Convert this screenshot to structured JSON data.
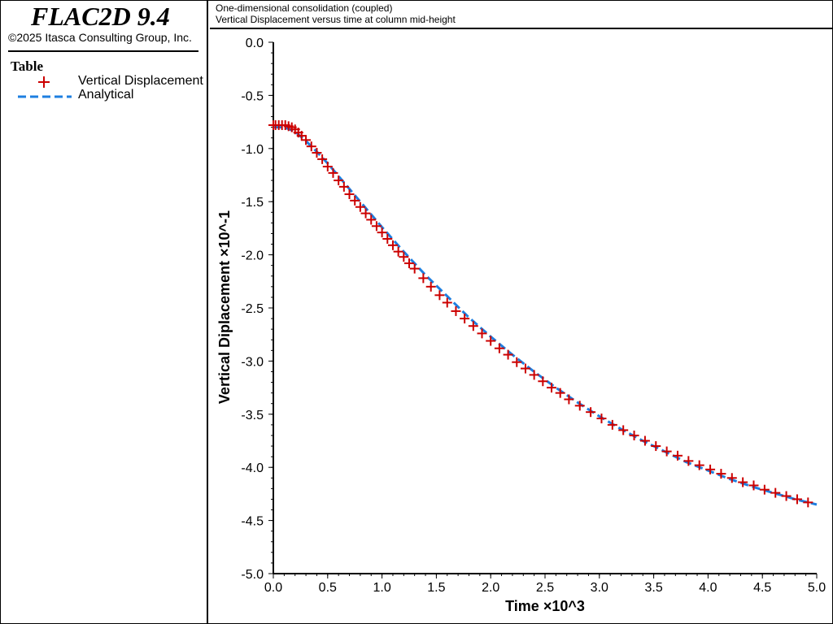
{
  "app": {
    "title": "FLAC2D 9.4",
    "copyright": "©2025 Itasca Consulting Group, Inc."
  },
  "legend": {
    "title": "Table",
    "items": [
      {
        "label": "Vertical Displacement",
        "marker": "plus",
        "color": "#cc0000"
      },
      {
        "label": "Analytical",
        "marker": "dashed-line",
        "color": "#1e7fe0"
      }
    ]
  },
  "header": {
    "line1": "One-dimensional consolidation (coupled)",
    "line2": "Vertical Displacement versus time at column mid-height"
  },
  "chart_data": {
    "type": "line",
    "xlabel": "Time ×10^3",
    "ylabel": "Vertical Diplacement ×10^-1",
    "xlim": [
      0.0,
      5.0
    ],
    "ylim": [
      -5.0,
      0.0
    ],
    "xticks": [
      "0.0",
      "0.5",
      "1.0",
      "1.5",
      "2.0",
      "2.5",
      "3.0",
      "3.5",
      "4.0",
      "4.5",
      "5.0"
    ],
    "yticks": [
      "0.0",
      "-0.5",
      "-1.0",
      "-1.5",
      "-2.0",
      "-2.5",
      "-3.0",
      "-3.5",
      "-4.0",
      "-4.5",
      "-5.0"
    ],
    "series": [
      {
        "name": "Vertical Displacement",
        "style": "markers",
        "marker": "plus",
        "color": "#cc0000",
        "x": [
          0.0,
          0.02,
          0.05,
          0.08,
          0.11,
          0.14,
          0.17,
          0.2,
          0.23,
          0.26,
          0.3,
          0.35,
          0.4,
          0.45,
          0.5,
          0.55,
          0.6,
          0.65,
          0.7,
          0.75,
          0.8,
          0.85,
          0.9,
          0.95,
          1.0,
          1.05,
          1.1,
          1.15,
          1.2,
          1.25,
          1.3,
          1.38,
          1.45,
          1.53,
          1.6,
          1.68,
          1.76,
          1.84,
          1.92,
          2.0,
          2.08,
          2.16,
          2.24,
          2.32,
          2.4,
          2.48,
          2.56,
          2.64,
          2.72,
          2.82,
          2.92,
          3.02,
          3.12,
          3.22,
          3.32,
          3.42,
          3.52,
          3.62,
          3.72,
          3.82,
          3.92,
          4.02,
          4.12,
          4.22,
          4.32,
          4.42,
          4.52,
          4.62,
          4.72,
          4.82,
          4.92
        ],
        "y": [
          -0.78,
          -0.78,
          -0.78,
          -0.78,
          -0.78,
          -0.79,
          -0.8,
          -0.82,
          -0.85,
          -0.88,
          -0.92,
          -0.98,
          -1.04,
          -1.1,
          -1.17,
          -1.23,
          -1.3,
          -1.36,
          -1.43,
          -1.49,
          -1.55,
          -1.61,
          -1.67,
          -1.73,
          -1.79,
          -1.85,
          -1.91,
          -1.97,
          -2.02,
          -2.08,
          -2.13,
          -2.22,
          -2.3,
          -2.38,
          -2.45,
          -2.53,
          -2.6,
          -2.67,
          -2.74,
          -2.81,
          -2.88,
          -2.94,
          -3.01,
          -3.07,
          -3.13,
          -3.19,
          -3.25,
          -3.3,
          -3.36,
          -3.42,
          -3.48,
          -3.54,
          -3.6,
          -3.65,
          -3.7,
          -3.75,
          -3.8,
          -3.85,
          -3.89,
          -3.94,
          -3.98,
          -4.02,
          -4.06,
          -4.1,
          -4.14,
          -4.17,
          -4.21,
          -4.24,
          -4.27,
          -4.3,
          -4.33
        ]
      },
      {
        "name": "Analytical",
        "style": "dashed",
        "color": "#1e7fe0",
        "x": [
          0.0,
          0.1,
          0.2,
          0.3,
          0.4,
          0.5,
          0.6,
          0.7,
          0.8,
          0.9,
          1.0,
          1.2,
          1.4,
          1.6,
          1.8,
          2.0,
          2.2,
          2.4,
          2.6,
          2.8,
          3.0,
          3.2,
          3.4,
          3.6,
          3.8,
          4.0,
          4.2,
          4.4,
          4.6,
          4.8,
          5.0
        ],
        "y": [
          -0.8,
          -0.8,
          -0.84,
          -0.93,
          -1.03,
          -1.14,
          -1.26,
          -1.38,
          -1.5,
          -1.62,
          -1.74,
          -1.97,
          -2.19,
          -2.39,
          -2.59,
          -2.77,
          -2.94,
          -3.1,
          -3.25,
          -3.39,
          -3.52,
          -3.64,
          -3.75,
          -3.85,
          -3.95,
          -4.03,
          -4.11,
          -4.18,
          -4.24,
          -4.3,
          -4.35
        ]
      }
    ]
  }
}
